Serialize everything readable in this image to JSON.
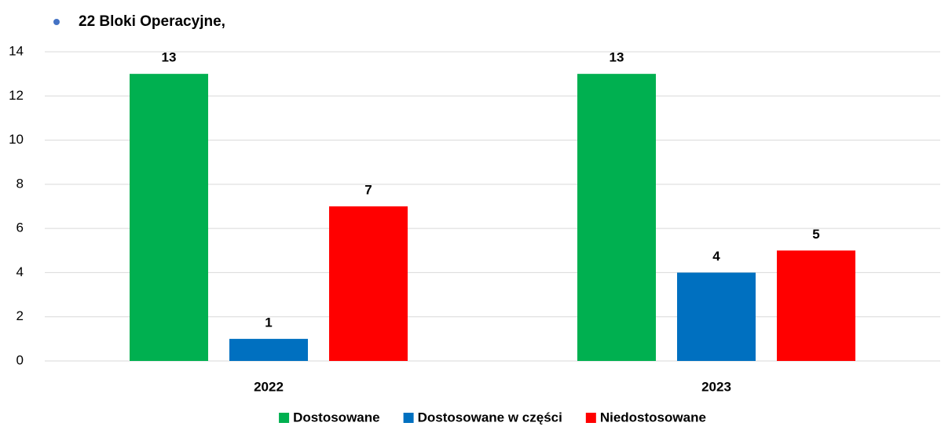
{
  "chart_data": {
    "type": "bar",
    "title": "22 Bloki Operacyjne,",
    "categories": [
      "2022",
      "2023"
    ],
    "series": [
      {
        "name": "Dostosowane",
        "color": "#00b050",
        "values": [
          13,
          13
        ]
      },
      {
        "name": "Dostosowane w części",
        "color": "#0070c0",
        "values": [
          1,
          4
        ]
      },
      {
        "name": "Niedostosowane",
        "color": "#ff0000",
        "values": [
          7,
          5
        ]
      }
    ],
    "ylim": [
      0,
      14
    ],
    "yticks": [
      0,
      2,
      4,
      6,
      8,
      10,
      12,
      14
    ],
    "grid": true,
    "legend": "bottom"
  }
}
